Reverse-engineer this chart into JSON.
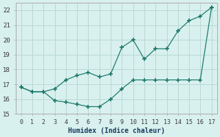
{
  "title": "",
  "xlabel": "Humidex (Indice chaleur)",
  "ylabel": "",
  "background_color": "#d8f0ee",
  "grid_color": "#b8d8d4",
  "line_color": "#1a7a6a",
  "x_vals": [
    0,
    1,
    2,
    3,
    4,
    5,
    6,
    7,
    8,
    9,
    10,
    11,
    12,
    13,
    14,
    15,
    16,
    17
  ],
  "y_low": [
    16.8,
    16.5,
    16.5,
    15.9,
    15.8,
    15.65,
    15.5,
    15.5,
    16.0,
    16.7,
    17.3,
    17.3,
    17.3,
    17.3,
    17.3,
    17.3,
    17.3,
    22.2
  ],
  "y_high": [
    16.8,
    16.5,
    16.5,
    16.7,
    17.3,
    17.6,
    17.8,
    17.5,
    17.7,
    19.5,
    20.0,
    18.7,
    19.4,
    19.4,
    20.6,
    21.3,
    21.6,
    22.2
  ],
  "ylim": [
    15.0,
    22.5
  ],
  "xlim": [
    -0.5,
    17.5
  ],
  "yticks": [
    15,
    16,
    17,
    18,
    19,
    20,
    21,
    22
  ],
  "xticks": [
    0,
    1,
    2,
    3,
    4,
    5,
    6,
    7,
    8,
    9,
    10,
    11,
    12,
    13,
    14,
    15,
    16,
    17
  ]
}
